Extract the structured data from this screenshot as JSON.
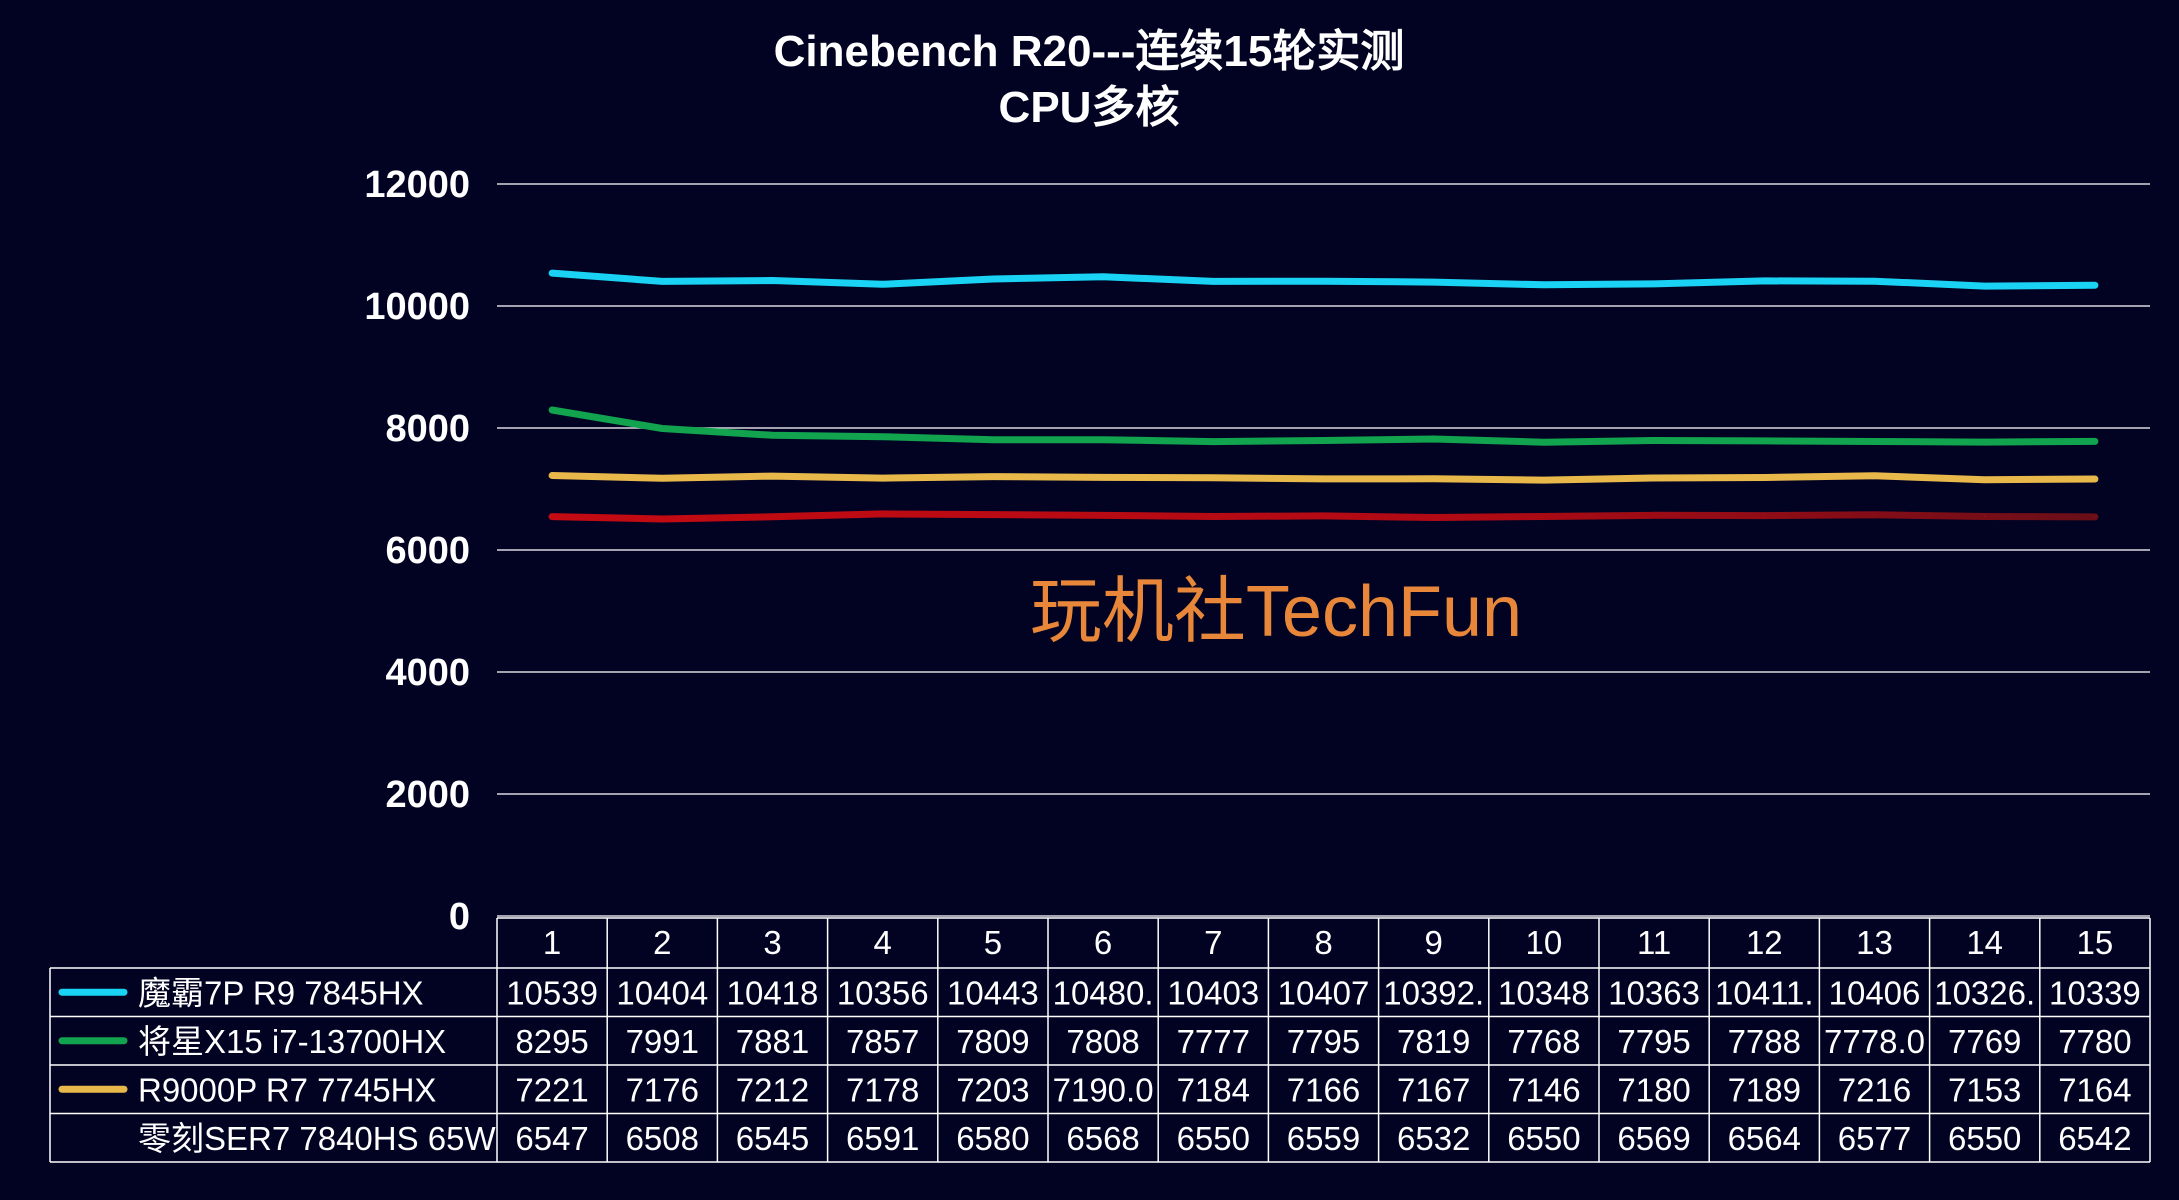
{
  "chart_data": {
    "type": "line",
    "title": "Cinebench R20---连续15轮实测",
    "subtitle": "CPU多核",
    "watermark": "玩机社TechFun",
    "ylim": [
      0,
      12000
    ],
    "yticks": [
      "0",
      "2000",
      "4000",
      "6000",
      "8000",
      "10000",
      "12000"
    ],
    "grid": true,
    "legend": "data-table-left",
    "categories": [
      "1",
      "2",
      "3",
      "4",
      "5",
      "6",
      "7",
      "8",
      "9",
      "10",
      "11",
      "12",
      "13",
      "14",
      "15"
    ],
    "series": [
      {
        "name": "魔霸7P R9 7845HX",
        "color": "#1ad2f4",
        "values": [
          10539,
          10404,
          10418,
          10356,
          10443,
          10480,
          10403,
          10407,
          10392,
          10348,
          10363,
          10411,
          10406,
          10326,
          10339
        ],
        "labels": [
          "10539",
          "10404",
          "10418",
          "10356",
          "10443",
          "10480.",
          "10403",
          "10407",
          "10392.",
          "10348",
          "10363",
          "10411.",
          "10406",
          "10326.",
          "10339"
        ]
      },
      {
        "name": "将星X15 i7-13700HX",
        "color": "#12a34f",
        "values": [
          8295,
          7991,
          7881,
          7857,
          7809,
          7808,
          7777,
          7795,
          7819,
          7768,
          7795,
          7788,
          7778,
          7769,
          7780
        ],
        "labels": [
          "8295",
          "7991",
          "7881",
          "7857",
          "7809",
          "7808",
          "7777",
          "7795",
          "7819",
          "7768",
          "7795",
          "7788",
          "7778.0",
          "7769",
          "7780"
        ]
      },
      {
        "name": "R9000P R7 7745HX",
        "color": "#e8b94a",
        "values": [
          7221,
          7176,
          7212,
          7178,
          7203,
          7190,
          7184,
          7166,
          7167,
          7146,
          7180,
          7189,
          7216,
          7153,
          7164
        ],
        "labels": [
          "7221",
          "7176",
          "7212",
          "7178",
          "7203",
          "7190.0",
          "7184",
          "7166",
          "7167",
          "7146",
          "7180",
          "7189",
          "7216",
          "7153",
          "7164"
        ]
      },
      {
        "name": "零刻SER7 7840HS 65W",
        "color": "#c40a12",
        "color_end": "#6a0e18",
        "values": [
          6547,
          6508,
          6545,
          6591,
          6580,
          6568,
          6550,
          6559,
          6532,
          6550,
          6569,
          6564,
          6577,
          6550,
          6542
        ],
        "labels": [
          "6547",
          "6508",
          "6545",
          "6591",
          "6580",
          "6568",
          "6550",
          "6559",
          "6532",
          "6550",
          "6569",
          "6564",
          "6577",
          "6550",
          "6542"
        ]
      }
    ]
  }
}
